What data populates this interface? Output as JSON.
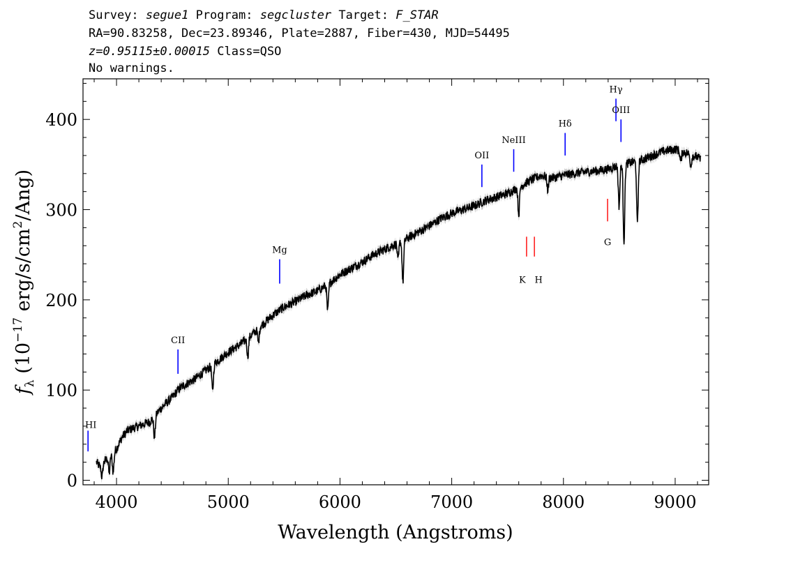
{
  "header": {
    "survey_label": "Survey:",
    "survey": "segue1",
    "program_label": "Program:",
    "program": "segcluster",
    "target_label": "Target:",
    "target": "F_STAR",
    "coords": "RA=90.83258, Dec=23.89346, Plate=2887, Fiber=430, MJD=54495",
    "redshift": "z=0.95115±0.00015",
    "class": "Class=QSO",
    "warnings": "No warnings."
  },
  "chart_data": {
    "type": "line",
    "xlabel": "Wavelength (Angstroms)",
    "ylabel_parts": [
      "f",
      "λ",
      " (10",
      "−17",
      " erg/s/cm",
      "2",
      "/Ang)"
    ],
    "xlim": [
      3700,
      9300
    ],
    "ylim": [
      -5,
      445
    ],
    "xticks": [
      4000,
      5000,
      6000,
      7000,
      8000,
      9000
    ],
    "yticks": [
      0,
      100,
      200,
      300,
      400
    ],
    "series": [
      {
        "x": [
          3820,
          3850,
          3900,
          3950,
          4000,
          4050,
          4100,
          4150,
          4200,
          4300,
          4400,
          4500,
          4550,
          4600,
          4700,
          4800,
          4900,
          5000,
          5100,
          5200,
          5300,
          5400,
          5500,
          5600,
          5700,
          5800,
          5900,
          6000,
          6100,
          6200,
          6300,
          6400,
          6500,
          6600,
          6700,
          6800,
          6900,
          7000,
          7100,
          7200,
          7300,
          7400,
          7500,
          7600,
          7700,
          7800,
          7900,
          8000,
          8100,
          8200,
          8300,
          8400,
          8500,
          8600,
          8700,
          8800,
          8900,
          9000,
          9100,
          9200,
          9230
        ],
        "y": [
          20,
          15,
          22,
          28,
          35,
          48,
          55,
          58,
          60,
          65,
          80,
          92,
          100,
          105,
          112,
          122,
          132,
          142,
          150,
          160,
          172,
          183,
          192,
          198,
          205,
          210,
          218,
          228,
          235,
          242,
          250,
          256,
          262,
          268,
          275,
          282,
          290,
          296,
          300,
          304,
          310,
          314,
          318,
          325,
          332,
          338,
          335,
          338,
          340,
          342,
          343,
          345,
          349,
          352,
          355,
          360,
          365,
          367,
          363,
          358,
          355
        ]
      }
    ],
    "absorption_dips": [
      {
        "x": 3870,
        "depth": 14
      },
      {
        "x": 3935,
        "depth": 18
      },
      {
        "x": 3970,
        "depth": 22
      },
      {
        "x": 4340,
        "depth": 24
      },
      {
        "x": 4860,
        "depth": 30
      },
      {
        "x": 5175,
        "depth": 20
      },
      {
        "x": 5270,
        "depth": 16
      },
      {
        "x": 5890,
        "depth": 30
      },
      {
        "x": 6520,
        "depth": 20
      },
      {
        "x": 6563,
        "depth": 46
      },
      {
        "x": 7600,
        "depth": 30
      },
      {
        "x": 7860,
        "depth": 14
      },
      {
        "x": 8498,
        "depth": 45
      },
      {
        "x": 8542,
        "depth": 85
      },
      {
        "x": 8662,
        "depth": 70
      },
      {
        "x": 9050,
        "depth": 12
      },
      {
        "x": 9140,
        "depth": 12
      }
    ],
    "noise_band": 5,
    "colors": {
      "spectrum": "#000000",
      "error_band": "#c0c0c0",
      "emission": "#0000ff",
      "absorption": "#ff0000"
    },
    "emission_lines": [
      {
        "label": "HI",
        "x": 3745,
        "y0": 32,
        "y1": 55,
        "label_y": 58
      },
      {
        "label": "CII",
        "x": 4550,
        "y0": 118,
        "y1": 145,
        "label_y": 152
      },
      {
        "label": "Mg",
        "x": 5460,
        "y0": 218,
        "y1": 245,
        "label_y": 252
      },
      {
        "label": "OII",
        "x": 7270,
        "y0": 325,
        "y1": 350,
        "label_y": 357
      },
      {
        "label": "NeIII",
        "x": 7555,
        "y0": 342,
        "y1": 367,
        "label_y": 374
      },
      {
        "label": "Hδ",
        "x": 8015,
        "y0": 360,
        "y1": 385,
        "label_y": 392
      },
      {
        "label": "Hγ",
        "x": 8470,
        "y0": 398,
        "y1": 423,
        "label_y": 430
      },
      {
        "label": "OIII",
        "x": 8515,
        "y0": 375,
        "y1": 400,
        "label_y": 407
      }
    ],
    "absorption_lines": [
      {
        "label": "K",
        "x": 7670,
        "y0": 248,
        "y1": 270,
        "label_y": 228
      },
      {
        "label": "H",
        "x": 7740,
        "y0": 248,
        "y1": 270,
        "label_y": 228
      },
      {
        "label": "G",
        "x": 8395,
        "y0": 287,
        "y1": 312,
        "label_y": 270
      }
    ]
  }
}
